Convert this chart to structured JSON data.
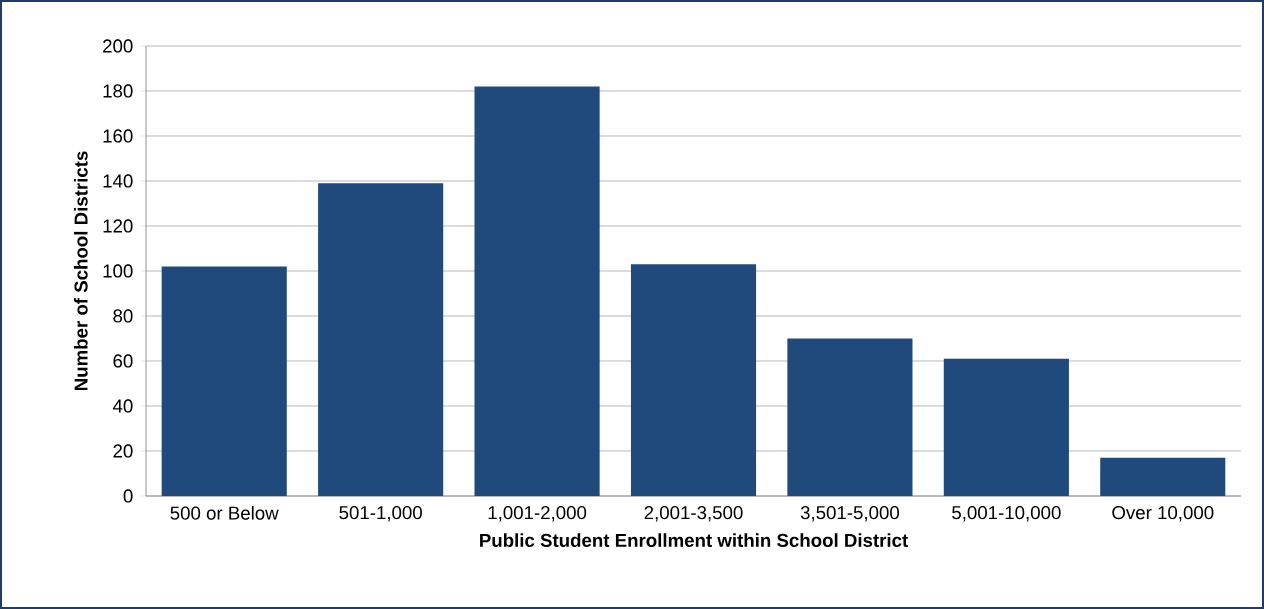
{
  "chart_data": {
    "type": "bar",
    "xlabel": "Public Student Enrollment within School District",
    "ylabel": "Number of School Districts",
    "categories": [
      "500 or Below",
      "501-1,000",
      "1,001-2,000",
      "2,001-3,500",
      "3,501-5,000",
      "5,001-10,000",
      "Over 10,000"
    ],
    "values": [
      102,
      139,
      182,
      103,
      70,
      61,
      17
    ],
    "color": "#214a7c",
    "ylim": [
      0,
      200
    ],
    "yticks": [
      0,
      20,
      40,
      60,
      80,
      100,
      120,
      140,
      160,
      180,
      200
    ],
    "grid": "y"
  }
}
